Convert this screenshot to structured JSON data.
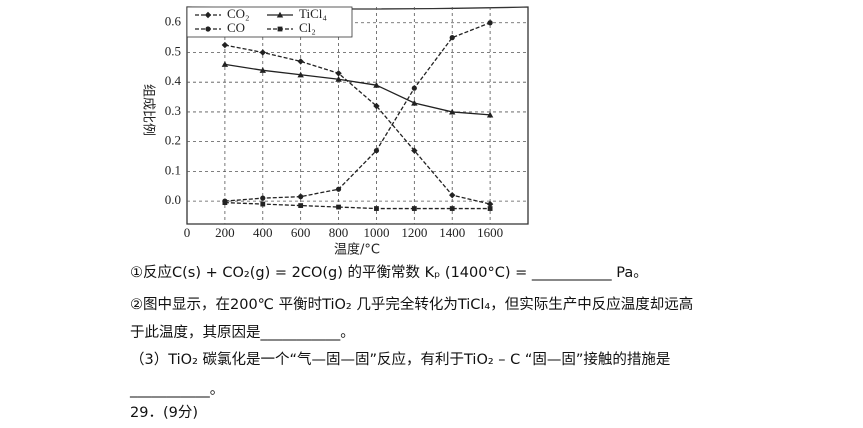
{
  "chart_data": {
    "type": "line",
    "xlabel": "温度/°C",
    "ylabel": "组成比例",
    "x": [
      200,
      400,
      600,
      800,
      1000,
      1200,
      1400,
      1600
    ],
    "xlim": [
      0,
      1800
    ],
    "xticks": [
      0,
      200,
      400,
      600,
      800,
      1000,
      1200,
      1400,
      1600
    ],
    "ylim": [
      -0.077,
      0.653
    ],
    "yticks": [
      {
        "value": 0,
        "label": "0.0"
      },
      0.1,
      0.2,
      0.3,
      0.4,
      0.5,
      0.6
    ],
    "grid": true,
    "legend": "top-left",
    "series": [
      {
        "name": "CO₂",
        "color": "#222222",
        "marker": "diamond",
        "dash": true,
        "values": [
          0.525,
          0.5,
          0.47,
          0.43,
          0.32,
          0.17,
          0.02,
          -0.01
        ]
      },
      {
        "name": "CO",
        "color": "#222222",
        "marker": "circle",
        "dash": true,
        "values": [
          0.0,
          0.01,
          0.015,
          0.04,
          0.17,
          0.38,
          0.55,
          0.6
        ]
      },
      {
        "name": "TiCl₄",
        "color": "#222222",
        "marker": "triangle",
        "dash": false,
        "values": [
          0.46,
          0.44,
          0.425,
          0.41,
          0.39,
          0.33,
          0.3,
          0.29
        ]
      },
      {
        "name": "Cl₂",
        "color": "#222222",
        "marker": "square",
        "dash": true,
        "values": [
          -0.005,
          -0.01,
          -0.015,
          -0.02,
          -0.025,
          -0.025,
          -0.025,
          -0.025
        ]
      }
    ]
  },
  "paragraphs": [
    "①反应C(s) + CO₂(g) = 2CO(g) 的平衡常数 Kₚ (1400°C) = ___________ Pa。",
    "②图中显示，在200℃ 平衡时TiO₂ 几乎完全转化为TiCl₄，但实际生产中反应温度却远高",
    "于此温度，其原因是___________。",
    "（3）TiO₂ 碳氯化是一个“气—固—固”反应，有利于TiO₂ – C “固—固”接触的措施是",
    "___________。",
    "29．(9分)"
  ]
}
